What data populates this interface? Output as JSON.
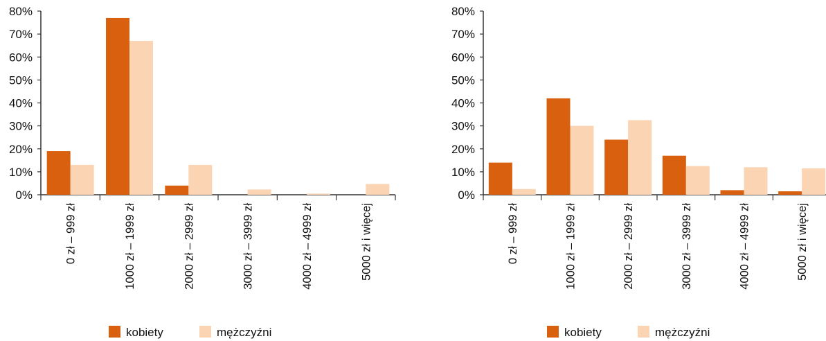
{
  "colors": {
    "kobiety": "#d9600f",
    "mezczyzni": "#fbd4b3",
    "axis": "#333333",
    "text": "#111111"
  },
  "chart_data": [
    {
      "type": "bar",
      "title": "",
      "xlabel": "",
      "ylabel": "",
      "ylim": [
        0,
        80
      ],
      "yticks": [
        "0%",
        "10%",
        "20%",
        "30%",
        "40%",
        "50%",
        "60%",
        "70%",
        "80%"
      ],
      "grid": false,
      "legend_position": "bottom",
      "categories": [
        "0 zł – 999 zł",
        "1000 zł – 1999 zł",
        "2000 zł – 2999 zł",
        "3000 zł – 3999 zł",
        "4000 zł – 4999 zł",
        "5000 zł i więcej"
      ],
      "series": [
        {
          "name": "kobiety",
          "values": [
            19,
            77,
            4,
            0,
            0,
            0
          ]
        },
        {
          "name": "mężczyźni",
          "values": [
            13,
            67,
            13,
            2.3,
            0.5,
            4.7
          ]
        }
      ]
    },
    {
      "type": "bar",
      "title": "",
      "xlabel": "",
      "ylabel": "",
      "ylim": [
        0,
        80
      ],
      "yticks": [
        "0%",
        "10%",
        "20%",
        "30%",
        "40%",
        "50%",
        "60%",
        "70%",
        "80%"
      ],
      "grid": false,
      "legend_position": "bottom",
      "categories": [
        "0 zł – 999 zł",
        "1000 zł – 1999 zł",
        "2000 zł – 2999 zł",
        "3000 zł – 3999 zł",
        "4000 zł – 4999 zł",
        "5000 zł i więcej"
      ],
      "series": [
        {
          "name": "kobiety",
          "values": [
            14,
            42,
            24,
            17,
            2,
            1.5
          ]
        },
        {
          "name": "mężczyźni",
          "values": [
            2.5,
            30,
            32.5,
            12.5,
            12,
            11.5
          ]
        }
      ]
    }
  ]
}
